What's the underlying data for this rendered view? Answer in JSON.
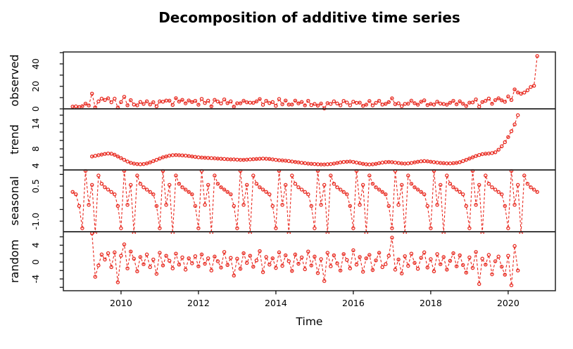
{
  "chart_data": {
    "type": "line",
    "title": "Decomposition of additive time series",
    "xlabel": "Time",
    "legend": "none",
    "grid": "off",
    "point_style": "open-circle",
    "line_style": "dashed",
    "series_color": "#e8281e",
    "axis_color": "#000000",
    "start_time": 2008.75,
    "frequency": 12,
    "n_points": 145,
    "trend_start_offset_months": 6,
    "xlim": [
      2008.51,
      2021.22
    ],
    "x_ticks": [
      {
        "v": 2010,
        "t": "2010"
      },
      {
        "v": 2012,
        "t": "2012"
      },
      {
        "v": 2014,
        "t": "2014"
      },
      {
        "v": 2016,
        "t": "2016"
      },
      {
        "v": 2018,
        "t": "2018"
      },
      {
        "v": 2020,
        "t": "2020"
      }
    ],
    "panels": [
      {
        "id": "observed",
        "label": "observed",
        "ylim": [
          0,
          50.6
        ],
        "ticks": [
          0,
          10,
          20,
          30,
          40,
          50
        ],
        "labeled_ticks": [
          {
            "v": 0,
            "t": "0"
          },
          {
            "v": 20,
            "t": "20"
          },
          {
            "v": 40,
            "t": "40"
          }
        ]
      },
      {
        "id": "trend",
        "label": "trend",
        "ylim": [
          3.0,
          17.5
        ],
        "ticks": [
          4,
          6,
          8,
          10,
          12,
          14,
          16
        ],
        "labeled_ticks": [
          {
            "v": 4,
            "t": "4"
          },
          {
            "v": 8,
            "t": "8"
          },
          {
            "v": 14,
            "t": "14"
          }
        ]
      },
      {
        "id": "seasonal",
        "label": "seasonal",
        "ylim": [
          -1.45,
          1.19
        ],
        "ticks": [
          -1,
          -0.5,
          0,
          0.5,
          1
        ],
        "labeled_ticks": [
          {
            "v": 0.5,
            "t": "0.5"
          },
          {
            "v": -1,
            "t": "-1.0"
          }
        ]
      },
      {
        "id": "random",
        "label": "random",
        "ylim": [
          -6.8,
          7.2
        ],
        "ticks": [
          -6,
          -4,
          -2,
          0,
          2,
          4,
          6
        ],
        "labeled_ticks": [
          {
            "v": -4,
            "t": "-4"
          },
          {
            "v": 0,
            "t": "0"
          },
          {
            "v": 4,
            "t": "4"
          }
        ]
      }
    ],
    "seasonal_cycle": [
      -1.3,
      1.15,
      -0.3,
      0.55,
      -1.5,
      0.95,
      0.6,
      0.45,
      0.35,
      0.25,
      0.15,
      -0.35
    ],
    "trend": [
      6.2,
      6.35,
      6.5,
      6.65,
      6.8,
      6.9,
      6.85,
      6.6,
      6.2,
      5.8,
      5.4,
      5.0,
      4.7,
      4.5,
      4.4,
      4.35,
      4.4,
      4.55,
      4.8,
      5.1,
      5.4,
      5.7,
      6.0,
      6.2,
      6.4,
      6.5,
      6.55,
      6.5,
      6.45,
      6.4,
      6.3,
      6.2,
      6.1,
      6.0,
      5.95,
      5.9,
      5.85,
      5.8,
      5.75,
      5.7,
      5.65,
      5.6,
      5.55,
      5.5,
      5.5,
      5.45,
      5.4,
      5.4,
      5.45,
      5.5,
      5.55,
      5.6,
      5.65,
      5.7,
      5.65,
      5.6,
      5.5,
      5.4,
      5.3,
      5.25,
      5.2,
      5.1,
      5.0,
      4.9,
      4.8,
      4.7,
      4.6,
      4.5,
      4.45,
      4.4,
      4.35,
      4.3,
      4.3,
      4.35,
      4.4,
      4.5,
      4.65,
      4.8,
      4.9,
      4.95,
      5.0,
      4.9,
      4.75,
      4.6,
      4.45,
      4.35,
      4.3,
      4.35,
      4.45,
      4.6,
      4.75,
      4.85,
      4.9,
      4.85,
      4.75,
      4.65,
      4.55,
      4.5,
      4.55,
      4.65,
      4.8,
      4.95,
      5.05,
      5.1,
      5.05,
      4.95,
      4.85,
      4.75,
      4.65,
      4.6,
      4.55,
      4.55,
      4.6,
      4.7,
      4.85,
      5.1,
      5.4,
      5.7,
      6.0,
      6.3,
      6.55,
      6.75,
      6.85,
      6.9,
      7.0,
      7.2,
      7.8,
      8.6,
      9.6,
      10.8,
      12.2,
      13.8,
      16.0
    ],
    "random": [
      6.8,
      -3.5,
      -0.8,
      1.8,
      0.6,
      2.1,
      -1.2,
      2.3,
      -4.8,
      1.5,
      4.2,
      -1.5,
      2.5,
      0.8,
      -2.2,
      1.2,
      -0.5,
      1.8,
      -1.2,
      0.6,
      -2.8,
      2.2,
      -0.8,
      1.5,
      0.3,
      -1.5,
      2.0,
      -0.6,
      1.1,
      -1.8,
      0.9,
      -0.3,
      1.4,
      -1.0,
      1.8,
      -0.4,
      0.9,
      -2.0,
      1.3,
      0.2,
      -1.3,
      2.4,
      -0.7,
      1.0,
      -3.2,
      0.8,
      -1.6,
      2.1,
      -0.2,
      1.5,
      -1.1,
      0.4,
      2.6,
      -2.4,
      1.2,
      -0.6,
      0.9,
      -1.4,
      2.3,
      -0.9,
      1.6,
      0.2,
      -2.1,
      1.8,
      -0.4,
      1.1,
      -1.7,
      2.5,
      -0.8,
      1.3,
      -2.6,
      0.7,
      -4.5,
      2.2,
      -1.0,
      1.6,
      -0.3,
      -2.0,
      1.9,
      0.5,
      -1.5,
      2.8,
      -0.6,
      1.2,
      -2.3,
      0.9,
      1.7,
      -1.9,
      0.4,
      2.2,
      -1.2,
      -0.5,
      1.5,
      5.8,
      -1.8,
      0.6,
      -2.7,
      1.4,
      -0.9,
      2.0,
      -0.2,
      -1.6,
      1.0,
      2.3,
      -1.3,
      0.7,
      -2.2,
      1.9,
      -0.5,
      1.2,
      -1.8,
      0.3,
      2.1,
      -1.0,
      1.6,
      -0.7,
      -2.5,
      1.1,
      -1.4,
      2.4,
      -5.2,
      0.8,
      -0.6,
      1.7,
      -2.9,
      0.2,
      1.3,
      -1.1,
      -3.0,
      1.5,
      -5.5,
      3.8,
      -2.0
    ],
    "observed_head": [
      2.0,
      2.2,
      1.6,
      2.4,
      4.6,
      3.0
    ],
    "observed_tail": [
      13.5,
      14.5,
      16.5,
      19.5,
      20.5,
      47.0
    ]
  }
}
